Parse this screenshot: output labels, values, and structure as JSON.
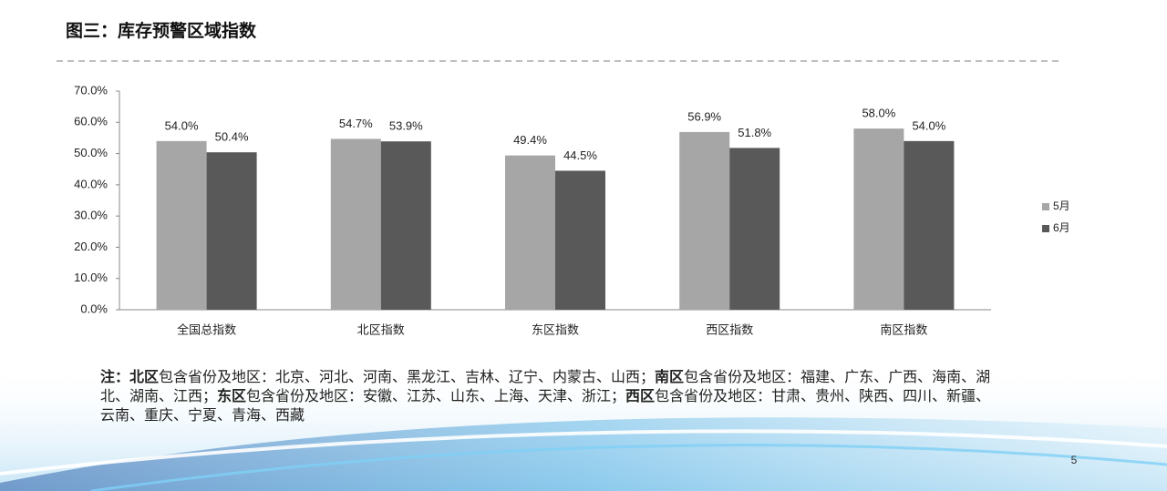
{
  "title": "图三：库存预警区域指数",
  "chart_data": {
    "type": "bar",
    "categories": [
      "全国总指数",
      "北区指数",
      "东区指数",
      "西区指数",
      "南区指数"
    ],
    "series": [
      {
        "name": "5月",
        "color": "#a6a6a6",
        "values": [
          54.0,
          54.7,
          49.4,
          56.9,
          58.0
        ],
        "value_labels": [
          "54.0%",
          "54.7%",
          "49.4%",
          "56.9%",
          "58.0%"
        ]
      },
      {
        "name": "6月",
        "color": "#595959",
        "values": [
          50.4,
          53.9,
          44.5,
          51.8,
          54.0
        ],
        "value_labels": [
          "50.4%",
          "53.9%",
          "44.5%",
          "51.8%",
          "54.0%"
        ]
      }
    ],
    "ylim": [
      0,
      70
    ],
    "yticks": [
      {
        "value": 0,
        "label": "0.0%"
      },
      {
        "value": 10,
        "label": "10.0%"
      },
      {
        "value": 20,
        "label": "20.0%"
      },
      {
        "value": 30,
        "label": "30.0%"
      },
      {
        "value": 40,
        "label": "40.0%"
      },
      {
        "value": 50,
        "label": "50.0%"
      },
      {
        "value": 60,
        "label": "60.0%"
      },
      {
        "value": 70,
        "label": "70.0%"
      }
    ],
    "grid": false,
    "legend": "right"
  },
  "note": [
    {
      "text": "注：",
      "bold": true
    },
    {
      "text": "北区",
      "bold": true
    },
    {
      "text": "包含省份及地区：北京、河北、河南、黑龙江、吉林、辽宁、内蒙古、山西；",
      "bold": false
    },
    {
      "text": "南区",
      "bold": true
    },
    {
      "text": "包含省份及地区：福建、广东、广西、海南、湖北、湖南、江西；",
      "bold": false
    },
    {
      "text": "东区",
      "bold": true
    },
    {
      "text": "包含省份及地区：安徽、江苏、山东、上海、天津、浙江；",
      "bold": false
    },
    {
      "text": "西区",
      "bold": true
    },
    {
      "text": "包含省份及地区：甘肃、贵州、陕西、四川、新疆、云南、重庆、宁夏、青海、西藏",
      "bold": false
    }
  ],
  "page_number": "5"
}
